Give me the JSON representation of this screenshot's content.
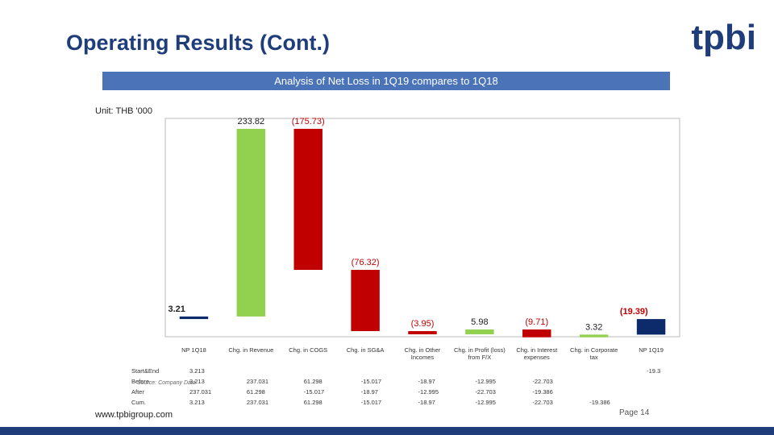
{
  "header": {
    "title": "Operating Results (Cont.)",
    "logo": "tpbi"
  },
  "chart_data": {
    "type": "waterfall",
    "title": "Analysis of Net Loss in 1Q19 compares to 1Q18",
    "unit": "Unit: THB '000",
    "categories": [
      "NP 1Q18",
      "Chg. in Revenue",
      "Chg. in COGS",
      "Chg. in SG&A",
      "Chg. in Other Incomes",
      "Chg. in Profit (loss) from F/X",
      "Chg. in Interest expenses",
      "Chg. in Corporate tax",
      "NP 1Q19"
    ],
    "values": [
      3.21,
      233.82,
      -175.73,
      -76.32,
      -3.95,
      5.98,
      -9.71,
      3.32,
      -19.39
    ],
    "value_labels": [
      "3.21",
      "233.82",
      "(175.73)",
      "(76.32)",
      "(3.95)",
      "5.98",
      "(9.71)",
      "3.32",
      "(19.39)"
    ],
    "colors": {
      "total": "#0d2a6b",
      "increase": "#92d050",
      "decrease": "#c00000"
    },
    "ylim": [
      -22,
      250
    ]
  },
  "data_table": {
    "rows": [
      {
        "label": "Start&End",
        "cells": [
          "3.213",
          "-19.3"
        ]
      },
      {
        "label": "Before",
        "cells": [
          "3.213",
          "237.031",
          "61.298",
          "-15.017",
          "-18.97",
          "-12.995",
          "-22.703"
        ]
      },
      {
        "label": "After",
        "cells": [
          "237.031",
          "61.298",
          "-15.017",
          "-18.97",
          "-12.995",
          "-22.703",
          "-19.386"
        ]
      },
      {
        "label": "Cum.",
        "cells": [
          "3.213",
          "237.031",
          "61.298",
          "-15.017",
          "-18.97",
          "-12.995",
          "-22.703",
          "-19.386"
        ]
      }
    ]
  },
  "footnote": "Source: Company Data",
  "footer": {
    "url": "www.tpbigroup.com",
    "page": "Page 14"
  }
}
